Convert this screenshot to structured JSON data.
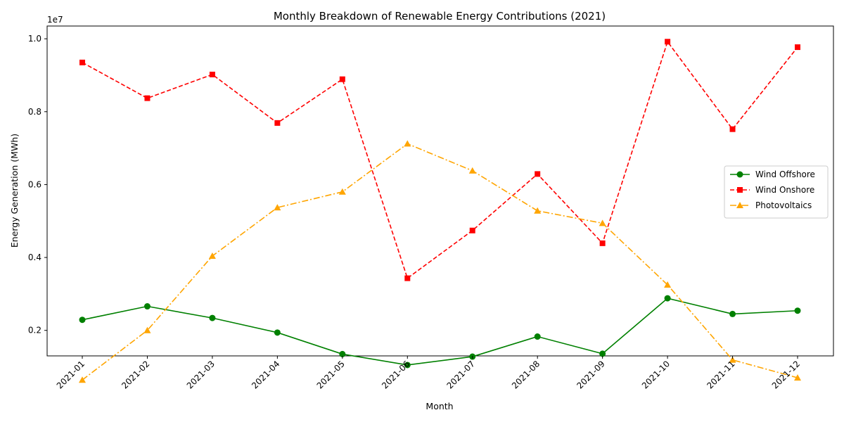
{
  "chart_data": {
    "type": "line",
    "title": "Monthly Breakdown of Renewable Energy Contributions (2021)",
    "xlabel": "Month",
    "ylabel": "Energy Generation (MWh)",
    "y_scale_note": "1e7",
    "categories": [
      "2021-01",
      "2021-02",
      "2021-03",
      "2021-04",
      "2021-05",
      "2021-06",
      "2021-07",
      "2021-08",
      "2021-09",
      "2021-10",
      "2021-11",
      "2021-12"
    ],
    "ylim": [
      1300000,
      10350000
    ],
    "yticks": [
      2000000,
      4000000,
      6000000,
      8000000,
      10000000
    ],
    "ytick_labels": [
      "0.2",
      "0.4",
      "0.6",
      "0.8",
      "1.0"
    ],
    "grid": false,
    "legend_position": "center-right",
    "series": [
      {
        "name": "Wind Offshore",
        "color": "#008000",
        "dash": "solid",
        "marker": "circle",
        "values": [
          2290000,
          2660000,
          2340000,
          1940000,
          1350000,
          1050000,
          1280000,
          1830000,
          1360000,
          2880000,
          2450000,
          2540000
        ]
      },
      {
        "name": "Wind Onshore",
        "color": "#ff0000",
        "dash": "dashed",
        "marker": "square",
        "values": [
          9350000,
          8370000,
          9020000,
          7690000,
          8890000,
          3430000,
          4740000,
          6290000,
          4390000,
          9920000,
          7520000,
          9770000
        ]
      },
      {
        "name": "Photovoltaics",
        "color": "#ffa500",
        "dash": "dashdot",
        "marker": "triangle",
        "values": [
          640000,
          2000000,
          4040000,
          5370000,
          5800000,
          7120000,
          6380000,
          5280000,
          4940000,
          3250000,
          1190000,
          700000
        ]
      }
    ]
  }
}
